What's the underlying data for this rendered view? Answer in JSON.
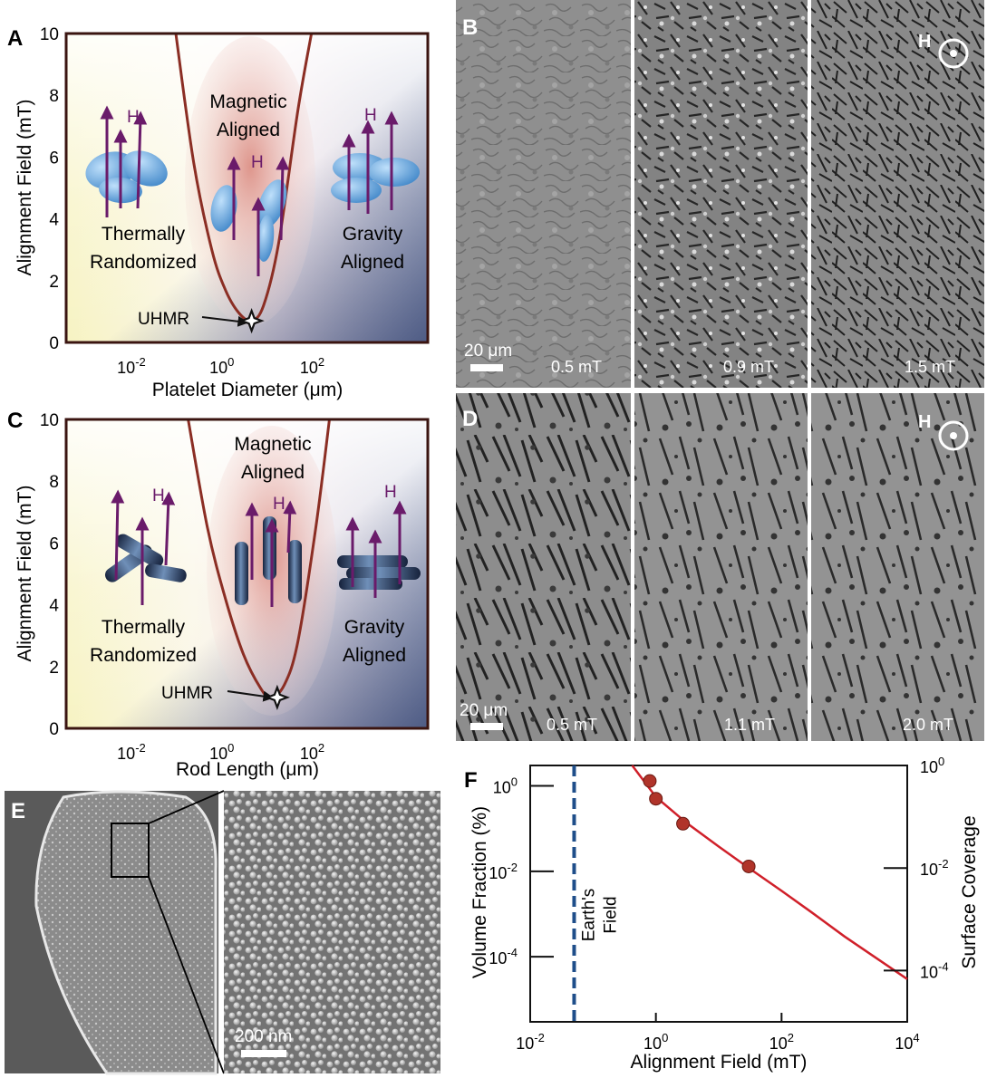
{
  "panels": {
    "a_label": "A",
    "b_label": "B",
    "c_label": "C",
    "d_label": "D",
    "e_label": "E",
    "f_label": "F"
  },
  "colors": {
    "curve": "#8b2e24",
    "particle": "#5f9fd6",
    "arrow": "#6a1b6a",
    "fit": "#d0202a",
    "marker": "#b0342a",
    "dashed": "#1f4e8a"
  },
  "icons": [
    "uhmr-star-icon",
    "field-out-of-plane-icon",
    "scale-bar-icon"
  ],
  "panel_a": {
    "ylabel": "Alignment Field (mT)",
    "xlabel": "Platelet Diameter (μm)",
    "yticks": [
      "0",
      "2",
      "4",
      "6",
      "8",
      "10"
    ],
    "xticks": [
      {
        "base": "10",
        "exp": "-2"
      },
      {
        "base": "10",
        "exp": "0"
      },
      {
        "base": "10",
        "exp": "2"
      }
    ],
    "region_left": [
      "Thermally",
      "Randomized"
    ],
    "region_mid": [
      "Magnetic",
      "Aligned"
    ],
    "region_right": [
      "Gravity",
      "Aligned"
    ],
    "field_label": "H",
    "uhmr": "UHMR"
  },
  "panel_c": {
    "ylabel": "Alignment Field (mT)",
    "xlabel": "Rod Length (μm)",
    "yticks": [
      "0",
      "2",
      "4",
      "6",
      "8",
      "10"
    ],
    "xticks": [
      {
        "base": "10",
        "exp": "-2"
      },
      {
        "base": "10",
        "exp": "0"
      },
      {
        "base": "10",
        "exp": "2"
      }
    ],
    "region_left": [
      "Thermally",
      "Randomized"
    ],
    "region_mid": [
      "Magnetic",
      "Aligned"
    ],
    "region_right": [
      "Gravity",
      "Aligned"
    ],
    "field_label": "H",
    "uhmr": "UHMR"
  },
  "panel_b": {
    "scale": "20 μm",
    "field_label": "H",
    "frames": [
      "0.5 mT",
      "0.9 mT",
      "1.5 mT"
    ]
  },
  "panel_d": {
    "scale": "20 μm",
    "field_label": "H",
    "frames": [
      "0.5 mT",
      "1.1 mT",
      "2.0 mT"
    ]
  },
  "panel_e": {
    "scale": "200 nm"
  },
  "chart_data": [
    {
      "panel": "A",
      "type": "line",
      "xscale": "log",
      "xlim": [
        0.0003,
        30000
      ],
      "ylim": [
        0,
        10
      ],
      "ylabel": "Alignment Field (mT)",
      "xlabel": "Platelet Diameter (μm)",
      "curve": {
        "x": [
          0.08,
          0.2,
          0.5,
          1,
          2,
          3.8,
          7,
          15,
          40,
          80
        ],
        "y": [
          10,
          5.8,
          3.0,
          1.7,
          0.95,
          0.7,
          1.2,
          3.2,
          7.5,
          10
        ]
      },
      "uhmr": {
        "x": 3.8,
        "y": 0.7
      }
    },
    {
      "panel": "C",
      "type": "line",
      "xscale": "log",
      "xlim": [
        0.0003,
        30000
      ],
      "ylim": [
        0,
        10
      ],
      "ylabel": "Alignment Field (mT)",
      "xlabel": "Rod Length (μm)",
      "curve": {
        "x": [
          0.15,
          0.4,
          1,
          2.5,
          6,
          10,
          20,
          40,
          100,
          200
        ],
        "y": [
          10,
          6.5,
          4.2,
          2.4,
          1.3,
          1.0,
          1.4,
          2.8,
          6.5,
          10
        ]
      },
      "uhmr": {
        "x": 14,
        "y": 1.0
      }
    },
    {
      "panel": "F",
      "type": "scatter",
      "xscale": "log",
      "yscale": "log",
      "xlabel": "Alignment Field (mT)",
      "ylabel": "Volume Fraction (%)",
      "y2label": "Surface Coverage",
      "xlim": [
        0.01,
        10000
      ],
      "ylim": [
        3e-06,
        3
      ],
      "y2lim": [
        1e-05,
        1
      ],
      "xticks": [
        {
          "base": "10",
          "exp": "-2"
        },
        {
          "base": "10",
          "exp": "0"
        },
        {
          "base": "10",
          "exp": "2"
        },
        {
          "base": "10",
          "exp": "4"
        }
      ],
      "yticks": [
        {
          "base": "10",
          "exp": "0"
        },
        {
          "base": "10",
          "exp": "-2"
        },
        {
          "base": "10",
          "exp": "-4"
        }
      ],
      "y2ticks": [
        {
          "base": "10",
          "exp": "0"
        },
        {
          "base": "10",
          "exp": "-2"
        },
        {
          "base": "10",
          "exp": "-4"
        }
      ],
      "points": {
        "x": [
          0.8,
          1.0,
          2.7,
          30
        ],
        "y": [
          1.3,
          0.5,
          0.13,
          0.013
        ]
      },
      "fit": {
        "x": [
          0.42,
          1,
          3,
          10,
          30,
          100,
          300,
          1000,
          3000,
          10000
        ],
        "y": [
          3.0,
          0.55,
          0.14,
          0.038,
          0.012,
          0.0035,
          0.0011,
          0.0003,
          0.0001,
          3e-05
        ]
      },
      "reference_line": {
        "x": 0.05,
        "label": [
          "Earth's",
          "Field"
        ]
      }
    }
  ]
}
